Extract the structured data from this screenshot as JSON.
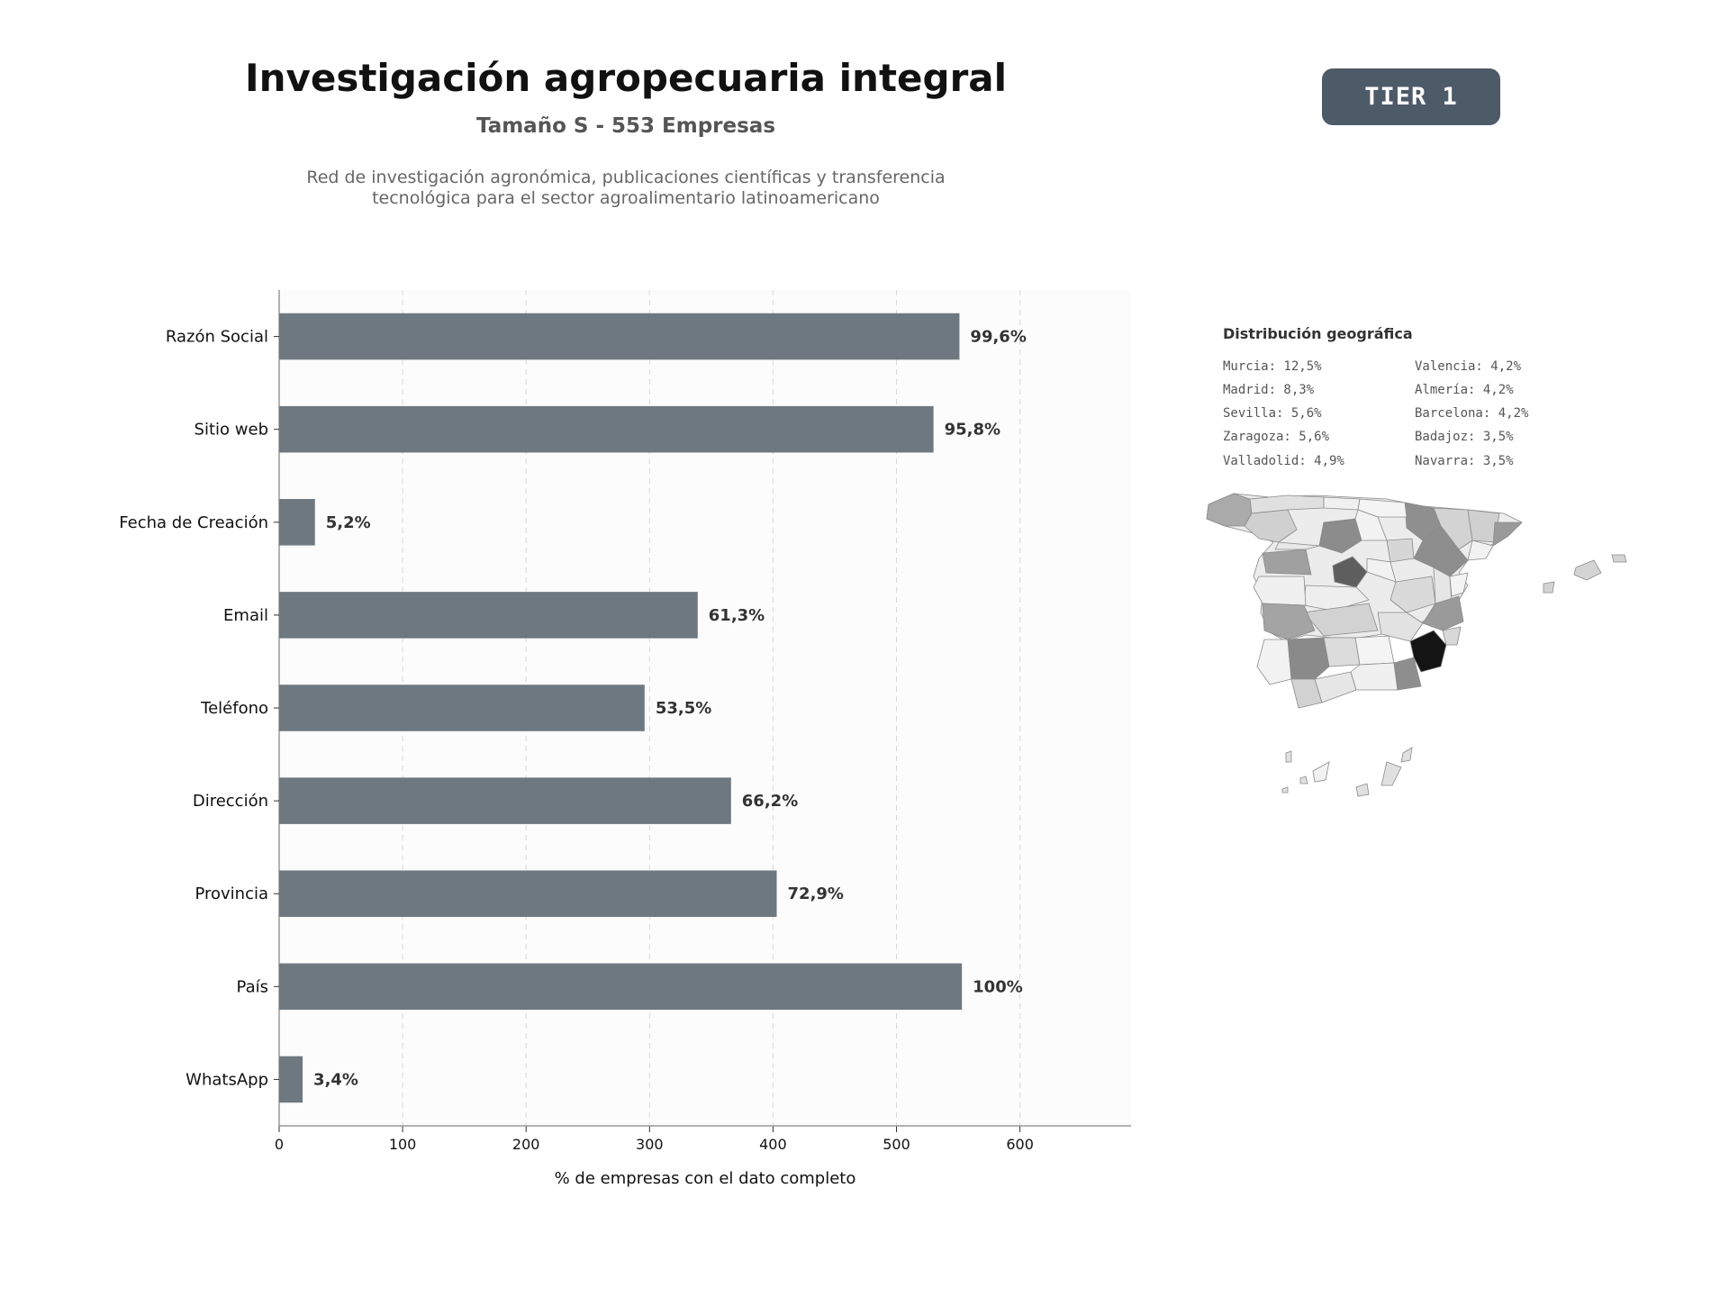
{
  "header": {
    "title": "Investigación agropecuaria integral",
    "subtitle": "Tamaño S - 553 Empresas",
    "description": "Red de investigación agronómica, publicaciones científicas y transferencia tecnológica para el sector agroalimentario latinoamericano",
    "tier": "TIER 1"
  },
  "chart_data": {
    "type": "bar",
    "orientation": "horizontal",
    "categories": [
      "Razón Social",
      "Sitio web",
      "Fecha de Creación",
      "Email",
      "Teléfono",
      "Dirección",
      "Provincia",
      "País",
      "WhatsApp"
    ],
    "values": [
      551,
      530,
      29,
      339,
      296,
      366,
      403,
      553,
      19
    ],
    "value_labels": [
      "99,6%",
      "95,8%",
      "5,2%",
      "61,3%",
      "53,5%",
      "66,2%",
      "72,9%",
      "100%",
      "3,4%"
    ],
    "xlabel": "% de empresas con el dato completo",
    "xlim": [
      0,
      690
    ],
    "xticks": [
      0,
      100,
      200,
      300,
      400,
      500,
      600
    ],
    "grid": "vertical dashed",
    "bar_color": "#6e7880"
  },
  "geo": {
    "title": "Distribución geográfica",
    "items": [
      "Murcia: 12,5%",
      "Valencia: 4,2%",
      "Madrid: 8,3%",
      "Almería: 4,2%",
      "Sevilla: 5,6%",
      "Barcelona: 4,2%",
      "Zaragoza: 5,6%",
      "Badajoz: 3,5%",
      "Valladolid: 4,9%",
      "Navarra: 3,5%"
    ]
  }
}
